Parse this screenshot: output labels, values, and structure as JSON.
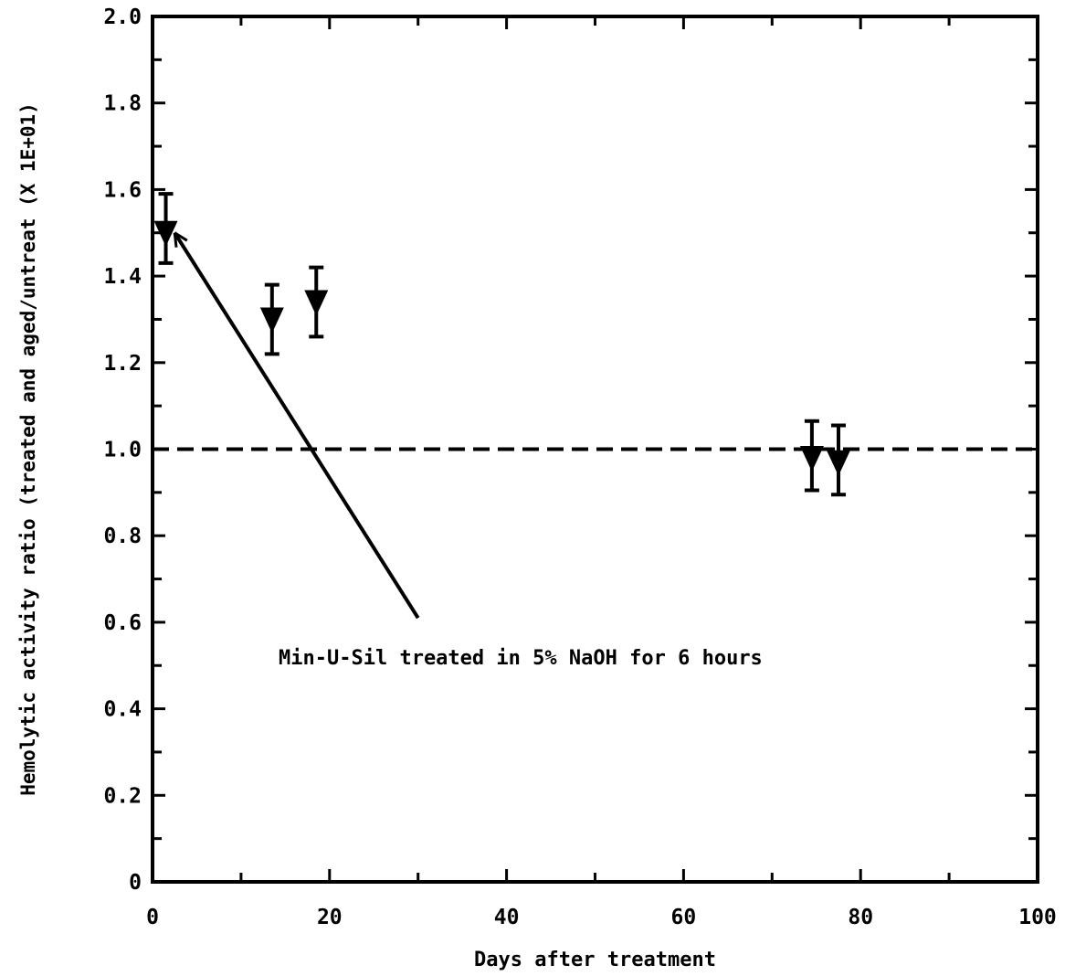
{
  "chart_data": {
    "type": "scatter",
    "title": "",
    "xlabel": "Days after treatment",
    "ylabel": "Hemolytic activity ratio  (treated and aged/untreat (X 1E+01)",
    "xlim": [
      0,
      100
    ],
    "ylim": [
      0,
      2.0
    ],
    "x_ticks": [
      0,
      20,
      40,
      60,
      80,
      100
    ],
    "x_tick_labels": [
      "0",
      "20",
      "40",
      "60",
      "80",
      "100"
    ],
    "y_ticks": [
      0,
      0.2,
      0.4,
      0.6,
      0.8,
      1.0,
      1.2,
      1.4,
      1.6,
      1.8,
      2.0
    ],
    "y_tick_labels": [
      "0",
      "0.2",
      "0.4",
      "0.6",
      "0.8",
      "1.0",
      "1.2",
      "1.4",
      "1.6",
      "1.8",
      "2.0"
    ],
    "grid": false,
    "marker": "triangle-down",
    "points": [
      {
        "x": 1.5,
        "y": 1.5,
        "low": 1.43,
        "high": 1.59
      },
      {
        "x": 13.5,
        "y": 1.3,
        "low": 1.22,
        "high": 1.38
      },
      {
        "x": 18.5,
        "y": 1.34,
        "low": 1.26,
        "high": 1.42
      },
      {
        "x": 74.5,
        "y": 0.98,
        "low": 0.905,
        "high": 1.065
      },
      {
        "x": 77.5,
        "y": 0.97,
        "low": 0.895,
        "high": 1.055
      }
    ],
    "reference_line": {
      "y": 1.0,
      "style": "dashed"
    },
    "annotation": {
      "text": "Min-U-Sil treated in 5% NaOH for 6 hours",
      "arrow_from": {
        "x": 30,
        "y": 0.61
      },
      "arrow_to": {
        "x": 2.5,
        "y": 1.5
      }
    }
  }
}
